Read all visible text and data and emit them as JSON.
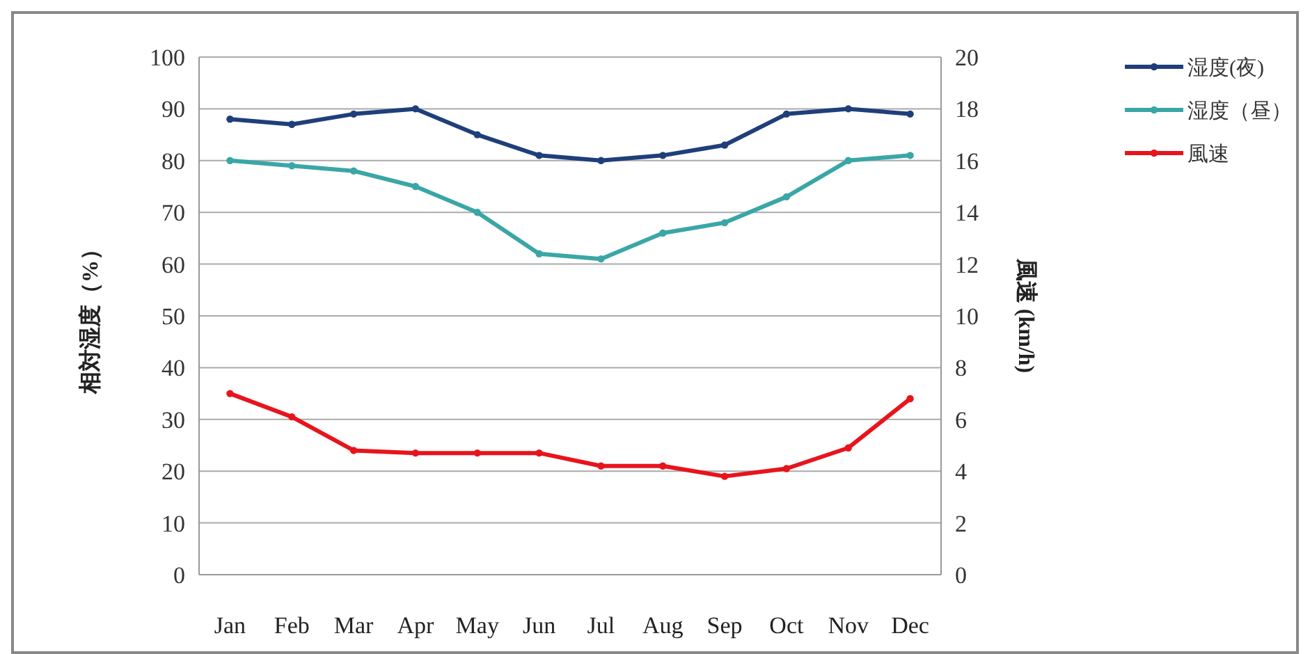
{
  "chart_data": {
    "type": "line",
    "categories": [
      "Jan",
      "Feb",
      "Mar",
      "Apr",
      "May",
      "Jun",
      "Jul",
      "Aug",
      "Sep",
      "Oct",
      "Nov",
      "Dec"
    ],
    "series": [
      {
        "name": "湿度(夜)",
        "color": "#1f3f7a",
        "values": [
          88,
          87,
          89,
          90,
          85,
          81,
          80,
          81,
          83,
          89,
          90,
          89
        ]
      },
      {
        "name": "湿度（昼）",
        "color": "#3aa6a6",
        "values": [
          80,
          79,
          78,
          75,
          70,
          62,
          61,
          66,
          68,
          73,
          80,
          81
        ]
      },
      {
        "name": "風速",
        "color": "#e8141c",
        "axis": "y2",
        "values": [
          7.0,
          6.1,
          4.8,
          4.7,
          4.7,
          4.7,
          4.2,
          4.2,
          3.8,
          4.1,
          4.9,
          6.8
        ]
      }
    ],
    "ylabel": "相対湿度（%）",
    "y2label": "風速 (km/h)",
    "ylim": [
      0,
      100
    ],
    "yticks": [
      0,
      10,
      20,
      30,
      40,
      50,
      60,
      70,
      80,
      90,
      100
    ],
    "y2lim": [
      0,
      20
    ],
    "y2ticks": [
      0,
      2,
      4,
      6,
      8,
      10,
      12,
      14,
      16,
      18,
      20
    ],
    "grid": "y",
    "legend": "top right",
    "marker": "circle",
    "line_style": "solid"
  }
}
